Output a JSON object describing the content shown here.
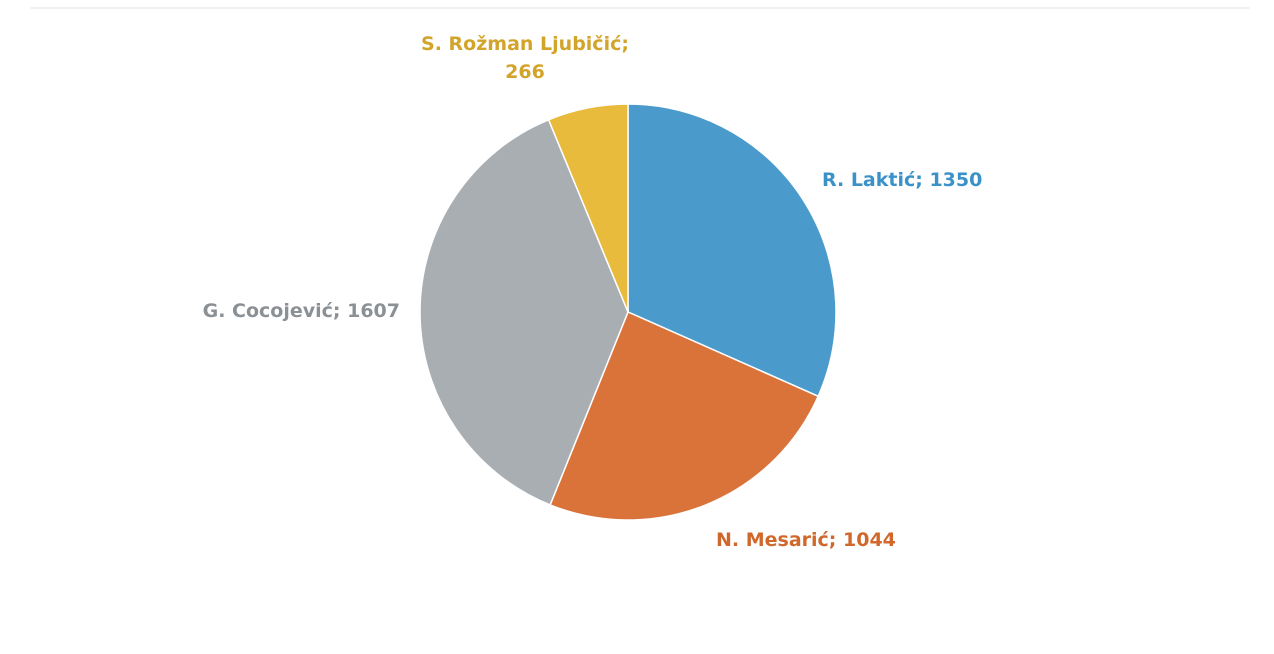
{
  "chart_data": {
    "type": "pie",
    "values": [
      1350,
      1044,
      1607,
      266
    ],
    "value_labels": [
      "R. Laktić; 1350",
      "N. Mesarić; 1044",
      "G. Cocojević; 1607",
      "S. Rožman Ljubičić; 266"
    ],
    "colors": [
      "#4a9bcb",
      "#d9733a",
      "#a9aeb2",
      "#e8bb3c"
    ],
    "label_colors": [
      "#3a92c8",
      "#d0682c",
      "#8b9095",
      "#d3a42a"
    ]
  }
}
